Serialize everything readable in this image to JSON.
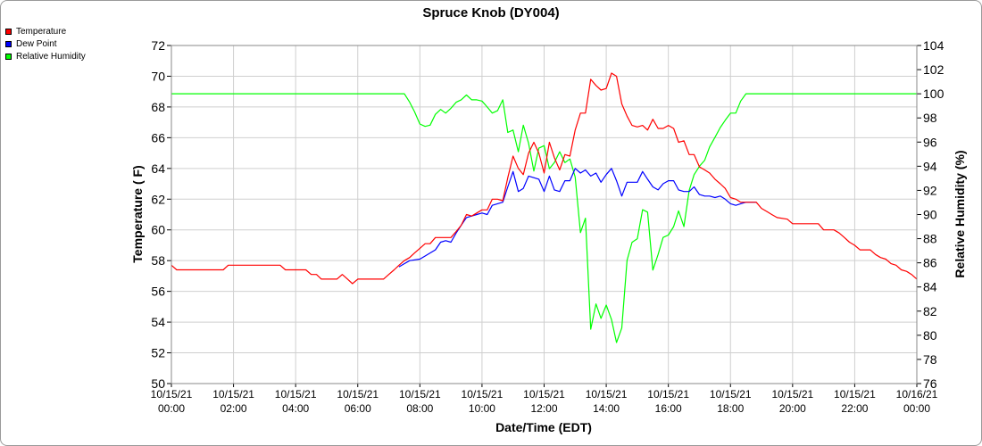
{
  "chart_data": {
    "type": "line",
    "title": "Spruce Knob (DY004)",
    "xlabel": "Date/Time (EDT)",
    "ylabel_left": "Temperature ( F)",
    "ylabel_right": "Relative Humidity (%)",
    "ylim_left": [
      50,
      72
    ],
    "ylim_right": [
      76,
      104
    ],
    "yticks_left": [
      50,
      52,
      54,
      56,
      58,
      60,
      62,
      64,
      66,
      68,
      70,
      72
    ],
    "yticks_right": [
      76,
      78,
      80,
      82,
      84,
      86,
      88,
      90,
      92,
      94,
      96,
      98,
      100,
      102,
      104
    ],
    "xlim_hours": [
      0,
      24
    ],
    "x_ticks": [
      {
        "date": "10/15/21",
        "time": "00:00"
      },
      {
        "date": "10/15/21",
        "time": "02:00"
      },
      {
        "date": "10/15/21",
        "time": "04:00"
      },
      {
        "date": "10/15/21",
        "time": "06:00"
      },
      {
        "date": "10/15/21",
        "time": "08:00"
      },
      {
        "date": "10/15/21",
        "time": "10:00"
      },
      {
        "date": "10/15/21",
        "time": "12:00"
      },
      {
        "date": "10/15/21",
        "time": "14:00"
      },
      {
        "date": "10/15/21",
        "time": "16:00"
      },
      {
        "date": "10/15/21",
        "time": "18:00"
      },
      {
        "date": "10/15/21",
        "time": "20:00"
      },
      {
        "date": "10/15/21",
        "time": "22:00"
      },
      {
        "date": "10/16/21",
        "time": "00:00"
      }
    ],
    "grid": true,
    "legend_position": "top-left",
    "series": [
      {
        "name": "Temperature",
        "axis": "left",
        "color": "#ff0000",
        "points": [
          [
            0,
            57.7
          ],
          [
            0.17,
            57.4
          ],
          [
            0.33,
            57.4
          ],
          [
            1,
            57.4
          ],
          [
            1.67,
            57.4
          ],
          [
            1.83,
            57.7
          ],
          [
            2,
            57.7
          ],
          [
            3,
            57.7
          ],
          [
            3.5,
            57.7
          ],
          [
            3.67,
            57.4
          ],
          [
            4,
            57.4
          ],
          [
            4.33,
            57.4
          ],
          [
            4.5,
            57.1
          ],
          [
            4.67,
            57.1
          ],
          [
            4.83,
            56.8
          ],
          [
            5,
            56.8
          ],
          [
            5.33,
            56.8
          ],
          [
            5.5,
            57.1
          ],
          [
            5.67,
            56.8
          ],
          [
            5.83,
            56.5
          ],
          [
            6,
            56.8
          ],
          [
            6.5,
            56.8
          ],
          [
            6.83,
            56.8
          ],
          [
            7,
            57.1
          ],
          [
            7.17,
            57.4
          ],
          [
            7.33,
            57.7
          ],
          [
            7.5,
            58.0
          ],
          [
            7.67,
            58.2
          ],
          [
            7.83,
            58.5
          ],
          [
            8,
            58.8
          ],
          [
            8.17,
            59.1
          ],
          [
            8.33,
            59.1
          ],
          [
            8.5,
            59.5
          ],
          [
            8.67,
            59.5
          ],
          [
            9,
            59.5
          ],
          [
            9.17,
            59.9
          ],
          [
            9.33,
            60.3
          ],
          [
            9.5,
            61.0
          ],
          [
            9.67,
            60.9
          ],
          [
            9.83,
            61.1
          ],
          [
            10,
            61.3
          ],
          [
            10.17,
            61.3
          ],
          [
            10.33,
            62.0
          ],
          [
            10.5,
            62.0
          ],
          [
            10.67,
            61.9
          ],
          [
            10.83,
            63.4
          ],
          [
            11,
            64.8
          ],
          [
            11.17,
            64.0
          ],
          [
            11.33,
            63.6
          ],
          [
            11.5,
            65.0
          ],
          [
            11.67,
            65.7
          ],
          [
            11.83,
            65.0
          ],
          [
            12,
            63.7
          ],
          [
            12.17,
            65.7
          ],
          [
            12.33,
            64.7
          ],
          [
            12.5,
            63.9
          ],
          [
            12.67,
            64.9
          ],
          [
            12.83,
            64.8
          ],
          [
            13,
            66.5
          ],
          [
            13.17,
            67.6
          ],
          [
            13.33,
            67.6
          ],
          [
            13.5,
            69.8
          ],
          [
            13.67,
            69.4
          ],
          [
            13.83,
            69.1
          ],
          [
            14,
            69.2
          ],
          [
            14.17,
            70.2
          ],
          [
            14.33,
            70.0
          ],
          [
            14.5,
            68.2
          ],
          [
            14.67,
            67.4
          ],
          [
            14.83,
            66.8
          ],
          [
            15,
            66.7
          ],
          [
            15.17,
            66.8
          ],
          [
            15.33,
            66.5
          ],
          [
            15.5,
            67.2
          ],
          [
            15.67,
            66.6
          ],
          [
            15.83,
            66.6
          ],
          [
            16,
            66.8
          ],
          [
            16.17,
            66.6
          ],
          [
            16.33,
            65.7
          ],
          [
            16.5,
            65.8
          ],
          [
            16.67,
            64.9
          ],
          [
            16.83,
            64.9
          ],
          [
            17,
            64.1
          ],
          [
            17.17,
            63.9
          ],
          [
            17.33,
            63.7
          ],
          [
            17.5,
            63.3
          ],
          [
            17.67,
            63.0
          ],
          [
            17.83,
            62.7
          ],
          [
            18,
            62.1
          ],
          [
            18.17,
            62.0
          ],
          [
            18.33,
            61.8
          ],
          [
            18.5,
            61.8
          ],
          [
            18.83,
            61.8
          ],
          [
            19,
            61.4
          ],
          [
            19.17,
            61.2
          ],
          [
            19.33,
            61.0
          ],
          [
            19.5,
            60.8
          ],
          [
            19.83,
            60.7
          ],
          [
            20,
            60.4
          ],
          [
            20.5,
            60.4
          ],
          [
            20.83,
            60.4
          ],
          [
            21,
            60.0
          ],
          [
            21.33,
            60.0
          ],
          [
            21.5,
            59.8
          ],
          [
            21.67,
            59.5
          ],
          [
            21.83,
            59.2
          ],
          [
            22,
            59.0
          ],
          [
            22.17,
            58.7
          ],
          [
            22.5,
            58.7
          ],
          [
            22.67,
            58.4
          ],
          [
            22.83,
            58.2
          ],
          [
            23,
            58.1
          ],
          [
            23.17,
            57.8
          ],
          [
            23.33,
            57.7
          ],
          [
            23.5,
            57.4
          ],
          [
            23.67,
            57.3
          ],
          [
            23.83,
            57.1
          ],
          [
            24,
            56.8
          ]
        ]
      },
      {
        "name": "Dew Point",
        "axis": "left",
        "color": "#0000ff",
        "points": [
          [
            7.33,
            57.6
          ],
          [
            7.5,
            57.8
          ],
          [
            7.67,
            58.0
          ],
          [
            8,
            58.1
          ],
          [
            8.17,
            58.3
          ],
          [
            8.33,
            58.5
          ],
          [
            8.5,
            58.7
          ],
          [
            8.67,
            59.2
          ],
          [
            8.83,
            59.3
          ],
          [
            9,
            59.2
          ],
          [
            9.17,
            59.8
          ],
          [
            9.33,
            60.3
          ],
          [
            9.5,
            60.8
          ],
          [
            9.67,
            60.9
          ],
          [
            9.83,
            61.0
          ],
          [
            10,
            61.1
          ],
          [
            10.17,
            61.0
          ],
          [
            10.33,
            61.6
          ],
          [
            10.5,
            61.7
          ],
          [
            10.67,
            61.8
          ],
          [
            10.83,
            62.8
          ],
          [
            11,
            63.8
          ],
          [
            11.17,
            62.5
          ],
          [
            11.33,
            62.7
          ],
          [
            11.5,
            63.5
          ],
          [
            11.67,
            63.4
          ],
          [
            11.83,
            63.3
          ],
          [
            12,
            62.5
          ],
          [
            12.17,
            63.5
          ],
          [
            12.33,
            62.6
          ],
          [
            12.5,
            62.5
          ],
          [
            12.67,
            63.2
          ],
          [
            12.83,
            63.2
          ],
          [
            13,
            64.0
          ],
          [
            13.17,
            63.7
          ],
          [
            13.33,
            63.9
          ],
          [
            13.5,
            63.5
          ],
          [
            13.67,
            63.7
          ],
          [
            13.83,
            63.1
          ],
          [
            14,
            63.6
          ],
          [
            14.17,
            64.0
          ],
          [
            14.33,
            63.2
          ],
          [
            14.5,
            62.2
          ],
          [
            14.67,
            63.1
          ],
          [
            14.83,
            63.1
          ],
          [
            15,
            63.1
          ],
          [
            15.17,
            63.8
          ],
          [
            15.33,
            63.3
          ],
          [
            15.5,
            62.8
          ],
          [
            15.67,
            62.6
          ],
          [
            15.83,
            63.0
          ],
          [
            16,
            63.2
          ],
          [
            16.17,
            63.2
          ],
          [
            16.33,
            62.6
          ],
          [
            16.5,
            62.5
          ],
          [
            16.67,
            62.5
          ],
          [
            16.83,
            62.8
          ],
          [
            17,
            62.3
          ],
          [
            17.17,
            62.2
          ],
          [
            17.33,
            62.2
          ],
          [
            17.5,
            62.1
          ],
          [
            17.67,
            62.2
          ],
          [
            17.83,
            62.0
          ],
          [
            18,
            61.7
          ],
          [
            18.17,
            61.6
          ],
          [
            18.33,
            61.7
          ],
          [
            18.5,
            61.8
          ],
          [
            18.83,
            61.8
          ]
        ]
      },
      {
        "name": "Relative Humidity",
        "axis": "right",
        "color": "#00ff00",
        "points": [
          [
            0,
            100
          ],
          [
            1,
            100
          ],
          [
            2,
            100
          ],
          [
            3,
            100
          ],
          [
            4,
            100
          ],
          [
            5,
            100
          ],
          [
            6,
            100
          ],
          [
            7,
            100
          ],
          [
            7.5,
            100
          ],
          [
            7.67,
            99.3
          ],
          [
            7.83,
            98.5
          ],
          [
            8,
            97.5
          ],
          [
            8.17,
            97.3
          ],
          [
            8.33,
            97.4
          ],
          [
            8.5,
            98.3
          ],
          [
            8.67,
            98.7
          ],
          [
            8.83,
            98.4
          ],
          [
            9,
            98.8
          ],
          [
            9.17,
            99.3
          ],
          [
            9.33,
            99.5
          ],
          [
            9.5,
            99.9
          ],
          [
            9.67,
            99.5
          ],
          [
            9.83,
            99.5
          ],
          [
            10,
            99.4
          ],
          [
            10.17,
            98.9
          ],
          [
            10.33,
            98.4
          ],
          [
            10.5,
            98.6
          ],
          [
            10.67,
            99.5
          ],
          [
            10.83,
            96.8
          ],
          [
            11,
            97.0
          ],
          [
            11.17,
            95.2
          ],
          [
            11.33,
            97.4
          ],
          [
            11.5,
            95.9
          ],
          [
            11.67,
            93.6
          ],
          [
            11.83,
            95.5
          ],
          [
            12,
            95.7
          ],
          [
            12.17,
            93.8
          ],
          [
            12.33,
            94.3
          ],
          [
            12.5,
            95.2
          ],
          [
            12.67,
            94.3
          ],
          [
            12.83,
            94.6
          ],
          [
            13,
            93.1
          ],
          [
            13.17,
            88.5
          ],
          [
            13.33,
            89.7
          ],
          [
            13.5,
            80.5
          ],
          [
            13.67,
            82.6
          ],
          [
            13.83,
            81.4
          ],
          [
            14,
            82.5
          ],
          [
            14.17,
            81.3
          ],
          [
            14.33,
            79.4
          ],
          [
            14.5,
            80.6
          ],
          [
            14.67,
            86.2
          ],
          [
            14.83,
            87.7
          ],
          [
            15,
            88.0
          ],
          [
            15.17,
            90.4
          ],
          [
            15.33,
            90.2
          ],
          [
            15.5,
            85.4
          ],
          [
            15.67,
            86.7
          ],
          [
            15.83,
            88.1
          ],
          [
            16,
            88.3
          ],
          [
            16.17,
            89.0
          ],
          [
            16.33,
            90.3
          ],
          [
            16.5,
            89.0
          ],
          [
            16.67,
            92.0
          ],
          [
            16.83,
            93.3
          ],
          [
            17,
            94.0
          ],
          [
            17.17,
            94.5
          ],
          [
            17.33,
            95.6
          ],
          [
            17.5,
            96.4
          ],
          [
            17.67,
            97.2
          ],
          [
            17.83,
            97.8
          ],
          [
            18,
            98.4
          ],
          [
            18.17,
            98.4
          ],
          [
            18.33,
            99.4
          ],
          [
            18.5,
            100
          ],
          [
            19,
            100
          ],
          [
            20,
            100
          ],
          [
            21,
            100
          ],
          [
            22,
            100
          ],
          [
            23,
            100
          ],
          [
            24,
            100
          ]
        ]
      }
    ]
  }
}
